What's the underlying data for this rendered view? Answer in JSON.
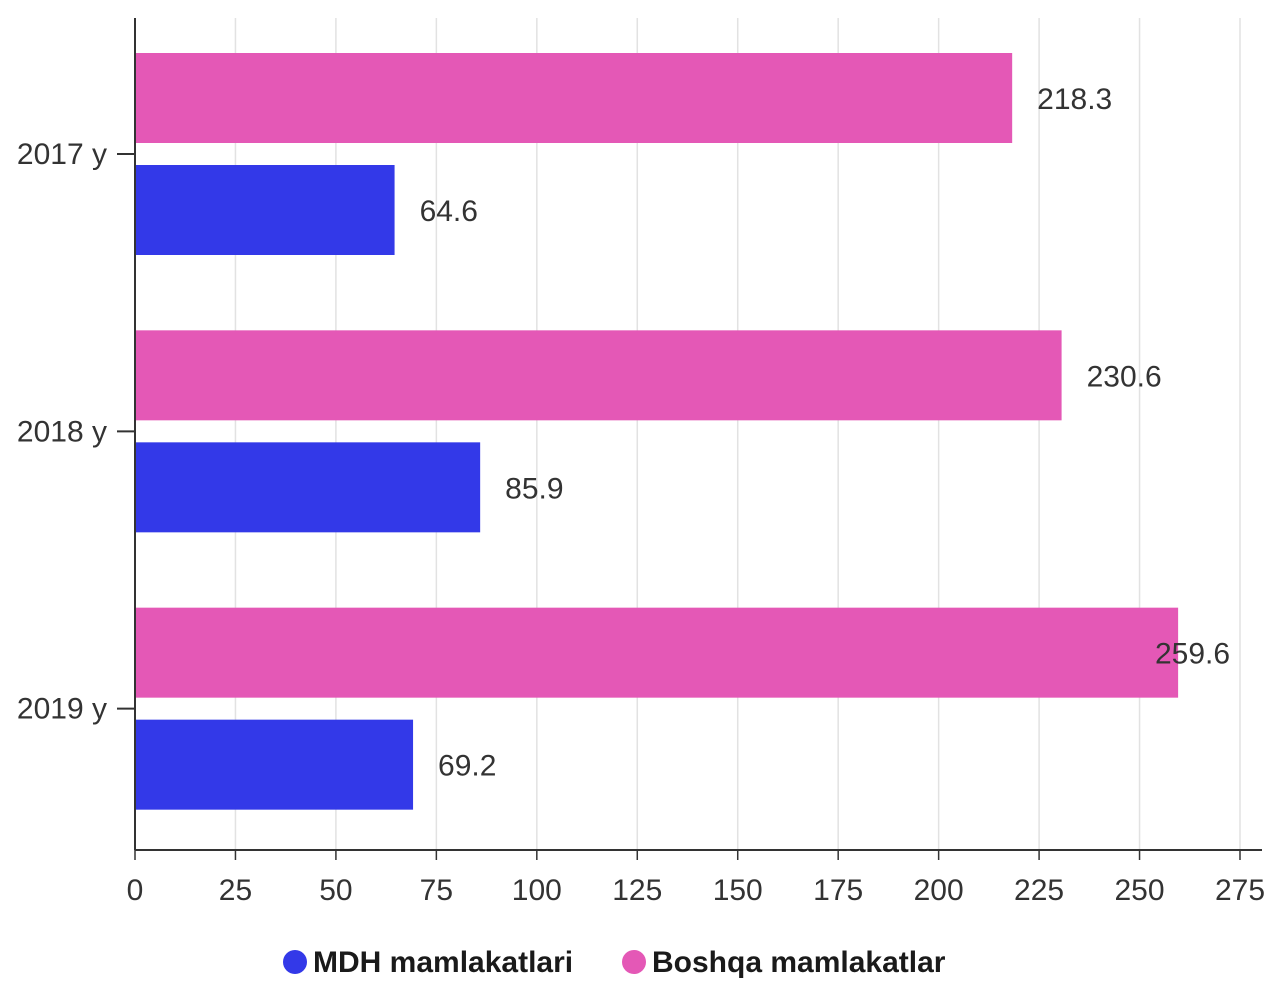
{
  "chart_data": {
    "type": "bar",
    "orientation": "horizontal",
    "categories": [
      "2017 y",
      "2018 y",
      "2019 y"
    ],
    "series": [
      {
        "name": "Boshqa mamlakatlar",
        "color": "#e458b6",
        "values": [
          218.3,
          230.6,
          259.6
        ]
      },
      {
        "name": "MDH mamlakatlari",
        "color": "#3339e8",
        "values": [
          64.6,
          85.9,
          69.2
        ]
      }
    ],
    "data_labels": [
      [
        "218.3",
        "230.6",
        "259.6"
      ],
      [
        "64.6",
        "85.9",
        "69.2"
      ]
    ],
    "xlim": [
      0,
      275
    ],
    "xticks": [
      0,
      25,
      50,
      75,
      100,
      125,
      150,
      175,
      200,
      225,
      250,
      275
    ],
    "grid": true,
    "legend": {
      "placement": "bottom",
      "items": [
        {
          "label": "MDH mamlakatlari",
          "color": "#3339e8"
        },
        {
          "label": "Boshqa mamlakatlar",
          "color": "#e458b6"
        }
      ]
    }
  }
}
